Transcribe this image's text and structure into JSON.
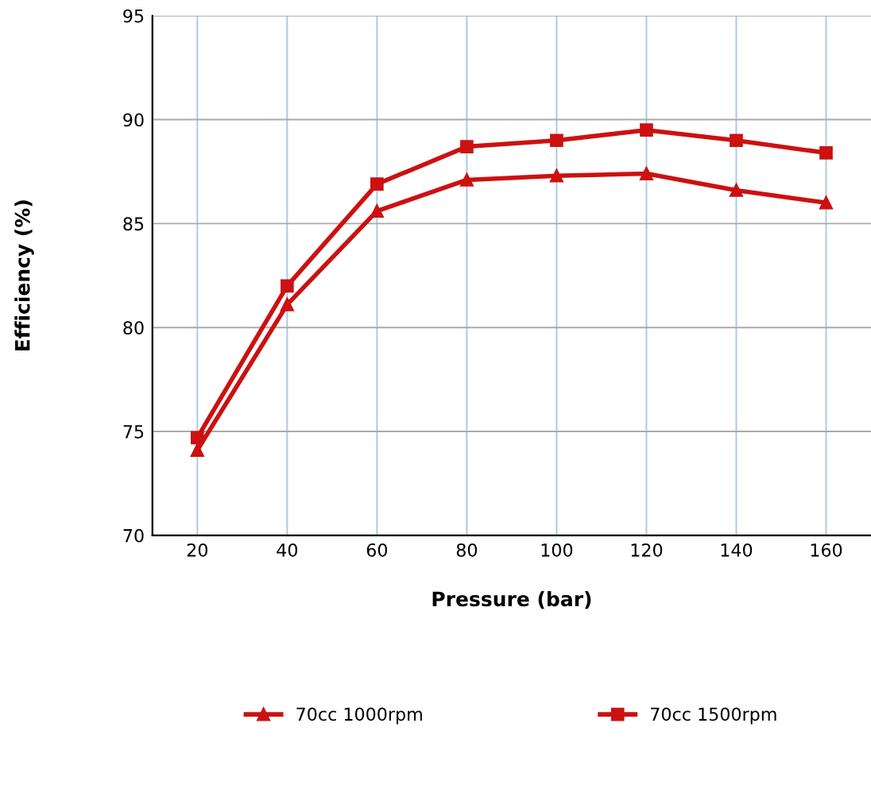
{
  "chart_data": {
    "type": "line",
    "xlabel": "Pressure (bar)",
    "ylabel": "Efficiency (%)",
    "categories": [
      "20",
      "40",
      "60",
      "80",
      "100",
      "120",
      "140",
      "160"
    ],
    "series": [
      {
        "name": "70cc 1000rpm",
        "color": "#cc1111",
        "marker": "triangle",
        "values": [
          74.1,
          81.1,
          85.6,
          87.1,
          87.3,
          87.4,
          86.6,
          86.0
        ]
      },
      {
        "name": "70cc 1500rpm",
        "color": "#cc1111",
        "marker": "square",
        "values": [
          74.7,
          82.0,
          86.9,
          88.7,
          89.0,
          89.5,
          89.0,
          88.4
        ]
      }
    ],
    "ylim": [
      70,
      95
    ],
    "yticks": [
      70,
      75,
      80,
      85,
      90,
      95
    ],
    "grid": true,
    "legend": "bottom",
    "line_style": "solid"
  }
}
